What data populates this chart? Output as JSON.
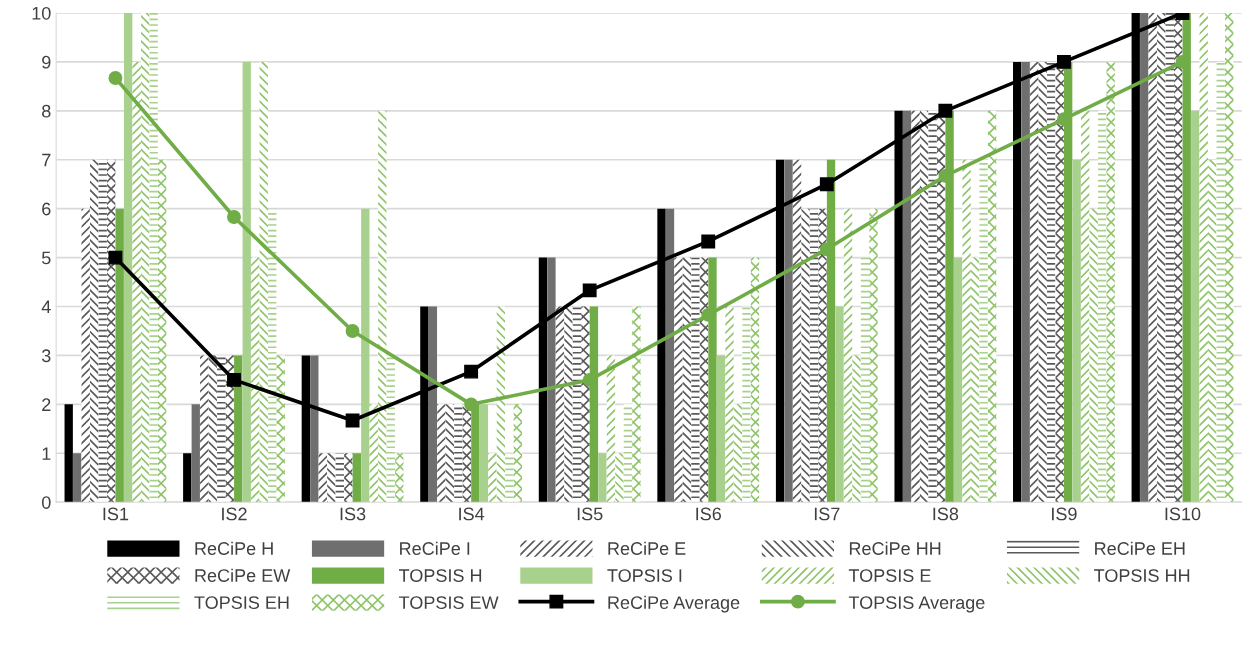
{
  "chart_data": {
    "type": "bar",
    "categories": [
      "IS1",
      "IS2",
      "IS3",
      "IS4",
      "IS5",
      "IS6",
      "IS7",
      "IS8",
      "IS9",
      "IS10"
    ],
    "ylim": [
      0,
      10
    ],
    "yticks": [
      0,
      1,
      2,
      3,
      4,
      5,
      6,
      7,
      8,
      9,
      10
    ],
    "grid": "y",
    "legend": "bottom",
    "series": [
      {
        "name": "ReCiPe H",
        "color": "#000000",
        "values": [
          2,
          1,
          3,
          4,
          5,
          6,
          7,
          8,
          9,
          10
        ]
      },
      {
        "name": "ReCiPe I",
        "color": "#6f6f6f",
        "values": [
          1,
          2,
          3,
          4,
          5,
          6,
          7,
          8,
          9,
          10
        ]
      },
      {
        "name": "ReCiPe E",
        "color": "#595959",
        "values": [
          6,
          3,
          1,
          2,
          4,
          5,
          7,
          8,
          9,
          10
        ]
      },
      {
        "name": "ReCiPe HH",
        "color": "#595959",
        "values": [
          7,
          3,
          1,
          2,
          4,
          5,
          6,
          8,
          9,
          10
        ]
      },
      {
        "name": "ReCiPe EH",
        "color": "#595959",
        "values": [
          7,
          3,
          1,
          2,
          4,
          5,
          6,
          8,
          9,
          10
        ]
      },
      {
        "name": "ReCiPe EW",
        "color": "#595959",
        "values": [
          7,
          3,
          1,
          2,
          4,
          5,
          6,
          8,
          9,
          10
        ]
      },
      {
        "name": "TOPSIS H",
        "color": "#70ad47",
        "values": [
          6,
          3,
          1,
          2,
          4,
          5,
          7,
          8,
          9,
          10
        ]
      },
      {
        "name": "TOPSIS I",
        "color": "#a9d18e",
        "values": [
          10,
          9,
          6,
          2,
          1,
          3,
          4,
          5,
          7,
          8
        ]
      },
      {
        "name": "TOPSIS E",
        "color": "#8fc46a",
        "values": [
          9,
          5,
          2,
          1,
          3,
          4,
          6,
          7,
          8,
          10
        ]
      },
      {
        "name": "TOPSIS HH",
        "color": "#8fc46a",
        "values": [
          10,
          9,
          8,
          4,
          1,
          2,
          3,
          5,
          6,
          7
        ]
      },
      {
        "name": "TOPSIS EH",
        "color": "#a9d18e",
        "values": [
          10,
          6,
          3,
          1,
          2,
          4,
          5,
          7,
          8,
          9
        ]
      },
      {
        "name": "TOPSIS EW",
        "color": "#8fc46a",
        "values": [
          7,
          3,
          1,
          2,
          4,
          5,
          6,
          8,
          9,
          10
        ]
      },
      {
        "name": "ReCiPe Average",
        "type": "line",
        "marker": "square",
        "color": "#000000",
        "values": [
          5,
          2.5,
          1.67,
          2.67,
          4.33,
          5.33,
          6.5,
          8,
          9,
          10
        ]
      },
      {
        "name": "TOPSIS Average",
        "type": "line",
        "marker": "circle",
        "color": "#70ad47",
        "values": [
          8.67,
          5.83,
          3.5,
          2,
          2.5,
          3.83,
          5.17,
          6.67,
          7.83,
          9
        ]
      }
    ]
  }
}
